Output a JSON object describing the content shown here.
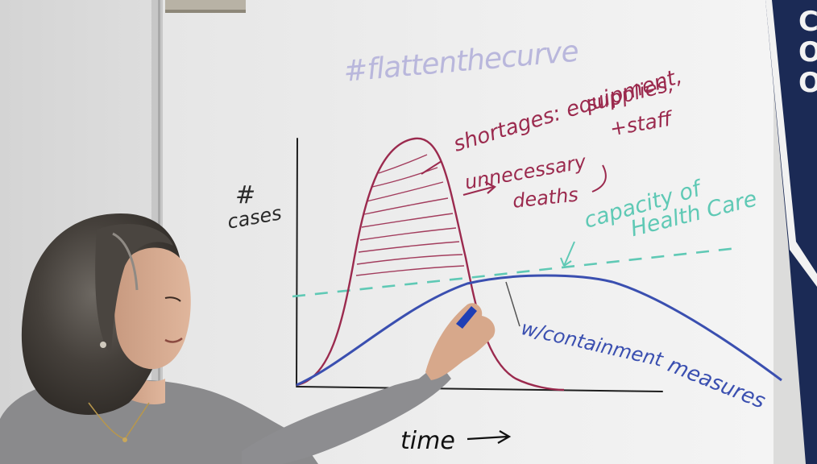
{
  "whiteboard": {
    "hashtag": "#flattenthecurve",
    "y_axis_label_hash": "#",
    "y_axis_label_cases": "cases",
    "x_axis_label": "time",
    "shortages_line1": "shortages: equipment,",
    "shortages_line2": "supplies,",
    "shortages_line3": "+staff",
    "unnecessary_line1": "unnecessary",
    "unnecessary_line2": "deaths",
    "capacity_line1": "capacity of",
    "capacity_line2": "Health Care",
    "containment_line1": "w/containment",
    "containment_line2": "measures"
  },
  "banner": {
    "letters": "COO"
  },
  "colors": {
    "maroon_marker": "#9b2a4e",
    "blue_marker": "#3a4fb0",
    "teal_marker": "#5fc9b5",
    "lavender_marker": "#b9b7dc",
    "banner_navy": "#1b2a55"
  },
  "objects": [
    "whiteboard",
    "presenter",
    "marker",
    "school-banner"
  ]
}
